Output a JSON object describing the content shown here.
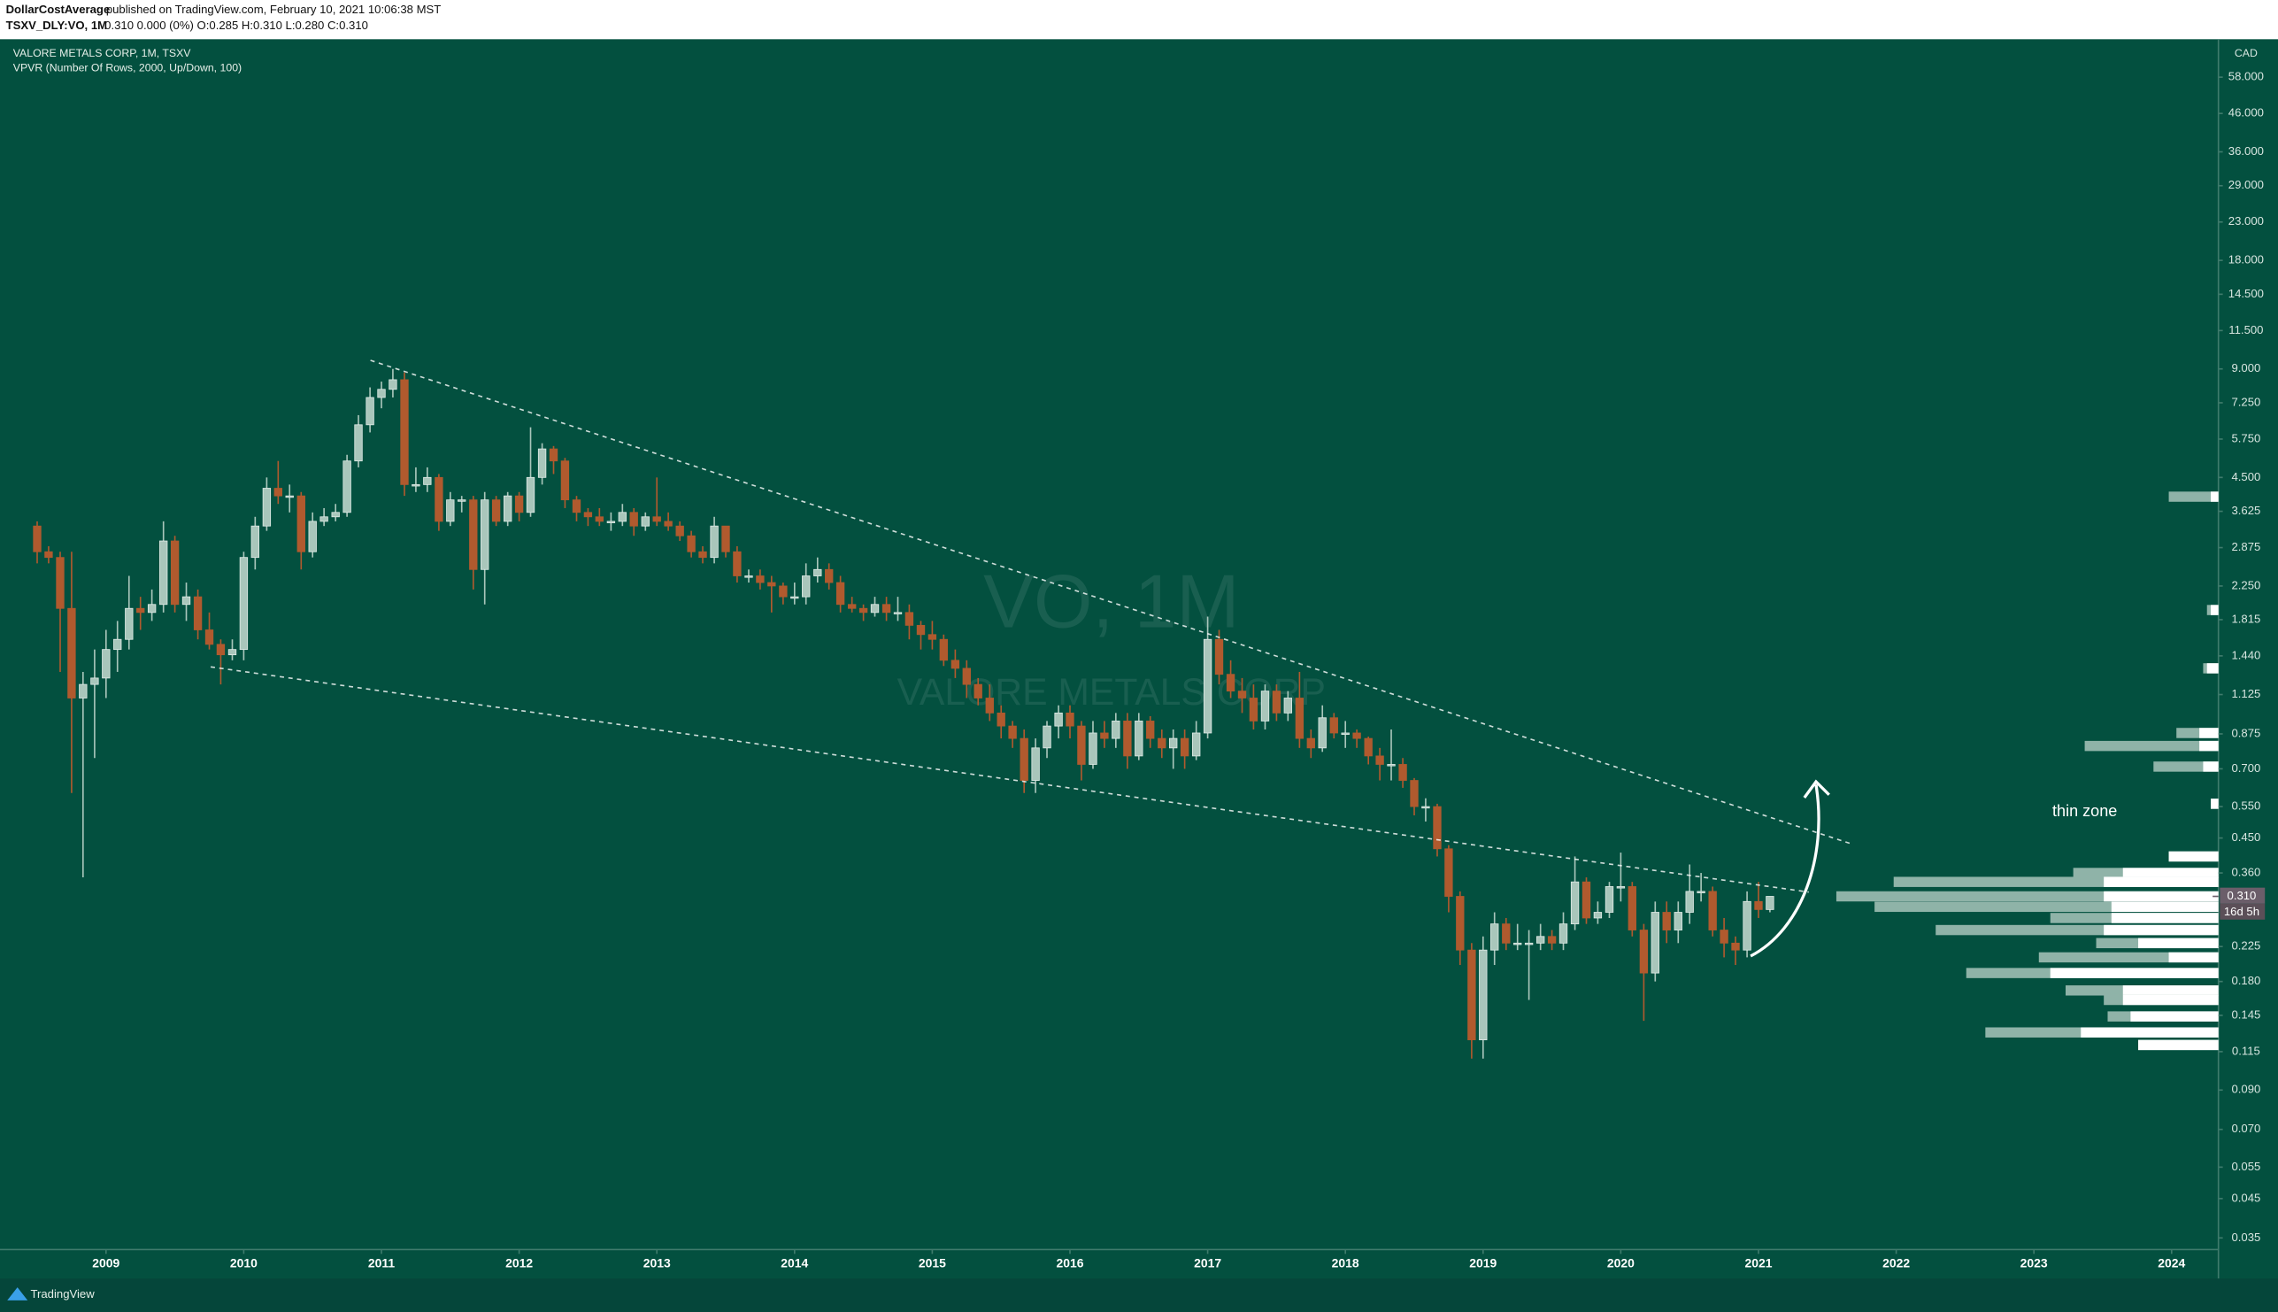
{
  "header": {
    "author": "DollarCostAverage",
    "published": "published on TradingView.com, February 10, 2021 10:06:38 MST",
    "symbol": "TSXV_DLY:VO, 1M",
    "quote": "0.310 0.000 (0%) O:0.285 H:0.310 L:0.280 C:0.310"
  },
  "chart_data": {
    "type": "candlestick",
    "title": "VALORE METALS CORP, 1M, TSXV",
    "indicator": "VPVR (Number Of Rows, 2000, Up/Down, 100)",
    "watermark": "VO, 1M",
    "watermark_subtitle": "VALORE METALS CORP",
    "currency": "CAD",
    "annotation": "thin zone",
    "up_color": "#a9c6bb",
    "down_color": "#b05a2e",
    "log_scale": true,
    "x": [
      2008.5,
      2008.583,
      2008.667,
      2008.75,
      2008.833,
      2008.917,
      2009,
      2009.083,
      2009.167,
      2009.25,
      2009.333,
      2009.417,
      2009.5,
      2009.583,
      2009.667,
      2009.75,
      2009.833,
      2009.917,
      2010,
      2010.083,
      2010.167,
      2010.25,
      2010.333,
      2010.417,
      2010.5,
      2010.583,
      2010.667,
      2010.75,
      2010.833,
      2010.917,
      2011,
      2011.083,
      2011.167,
      2011.25,
      2011.333,
      2011.417,
      2011.5,
      2011.583,
      2011.667,
      2011.75,
      2011.833,
      2011.917,
      2012,
      2012.083,
      2012.167,
      2012.25,
      2012.333,
      2012.417,
      2012.5,
      2012.583,
      2012.667,
      2012.75,
      2012.833,
      2012.917,
      2013,
      2013.083,
      2013.167,
      2013.25,
      2013.333,
      2013.417,
      2013.5,
      2013.583,
      2013.667,
      2013.75,
      2013.833,
      2013.917,
      2014,
      2014.083,
      2014.167,
      2014.25,
      2014.333,
      2014.417,
      2014.5,
      2014.583,
      2014.667,
      2014.75,
      2014.833,
      2014.917,
      2015,
      2015.083,
      2015.167,
      2015.25,
      2015.333,
      2015.417,
      2015.5,
      2015.583,
      2015.667,
      2015.75,
      2015.833,
      2015.917,
      2016,
      2016.083,
      2016.167,
      2016.25,
      2016.333,
      2016.417,
      2016.5,
      2016.583,
      2016.667,
      2016.75,
      2016.833,
      2016.917,
      2017,
      2017.083,
      2017.167,
      2017.25,
      2017.333,
      2017.417,
      2017.5,
      2017.583,
      2017.667,
      2017.75,
      2017.833,
      2017.917,
      2018,
      2018.083,
      2018.167,
      2018.25,
      2018.333,
      2018.417,
      2018.5,
      2018.583,
      2018.667,
      2018.75,
      2018.833,
      2018.917,
      2019,
      2019.083,
      2019.167,
      2019.25,
      2019.333,
      2019.417,
      2019.5,
      2019.583,
      2019.667,
      2019.75,
      2019.833,
      2019.917,
      2020,
      2020.083,
      2020.167,
      2020.25,
      2020.333,
      2020.417,
      2020.5,
      2020.583,
      2020.667,
      2020.75,
      2020.833,
      2020.917,
      2021,
      2021.083
    ],
    "open": [
      3.3,
      2.8,
      2.7,
      1.95,
      1.1,
      1.2,
      1.25,
      1.5,
      1.6,
      1.95,
      1.9,
      2.0,
      3.0,
      2.0,
      2.1,
      1.7,
      1.55,
      1.45,
      1.5,
      2.7,
      3.3,
      4.2,
      4.0,
      4.0,
      2.8,
      3.4,
      3.5,
      3.6,
      5.0,
      6.3,
      7.5,
      7.9,
      8.4,
      4.3,
      4.3,
      4.5,
      3.4,
      3.9,
      3.9,
      2.5,
      3.9,
      3.4,
      4.0,
      3.6,
      4.5,
      5.4,
      5.0,
      3.9,
      3.6,
      3.5,
      3.4,
      3.4,
      3.6,
      3.3,
      3.5,
      3.4,
      3.3,
      3.1,
      2.8,
      2.7,
      3.3,
      2.8,
      2.4,
      2.4,
      2.3,
      2.25,
      2.1,
      2.1,
      2.4,
      2.5,
      2.3,
      2.0,
      1.95,
      1.9,
      2.0,
      1.9,
      1.9,
      1.75,
      1.65,
      1.6,
      1.4,
      1.33,
      1.2,
      1.1,
      1.0,
      0.92,
      0.85,
      0.65,
      0.8,
      0.92,
      1.0,
      0.92,
      0.72,
      0.88,
      0.85,
      0.95,
      0.76,
      0.95,
      0.85,
      0.8,
      0.85,
      0.76,
      0.88,
      1.6,
      1.28,
      1.15,
      1.1,
      0.95,
      1.15,
      1.0,
      1.1,
      0.85,
      0.8,
      0.97,
      0.88,
      0.88,
      0.85,
      0.76,
      0.72,
      0.72,
      0.65,
      0.55,
      0.55,
      0.42,
      0.31,
      0.22,
      0.124,
      0.22,
      0.26,
      0.23,
      0.23,
      0.23,
      0.24,
      0.23,
      0.26,
      0.34,
      0.27,
      0.28,
      0.33,
      0.33,
      0.25,
      0.19,
      0.28,
      0.25,
      0.28,
      0.32,
      0.32,
      0.25,
      0.23,
      0.22,
      0.3,
      0.285
    ],
    "high": [
      3.4,
      2.9,
      2.8,
      2.8,
      1.3,
      1.5,
      1.7,
      1.8,
      2.4,
      2.1,
      2.2,
      3.4,
      3.1,
      2.3,
      2.2,
      1.9,
      1.6,
      1.6,
      2.8,
      3.5,
      4.5,
      5.0,
      4.3,
      4.1,
      3.6,
      3.7,
      3.8,
      5.2,
      6.7,
      8.0,
      8.3,
      9.0,
      8.8,
      4.8,
      4.8,
      4.6,
      4.1,
      4.0,
      4.0,
      4.1,
      4.0,
      4.1,
      4.1,
      6.2,
      5.6,
      5.5,
      5.1,
      4.0,
      3.7,
      3.7,
      3.6,
      3.8,
      3.7,
      3.6,
      4.5,
      3.6,
      3.4,
      3.2,
      2.9,
      3.5,
      3.3,
      2.9,
      2.5,
      2.5,
      2.4,
      2.3,
      2.3,
      2.6,
      2.7,
      2.6,
      2.4,
      2.1,
      2.0,
      2.1,
      2.1,
      2.1,
      2.0,
      1.8,
      1.8,
      1.65,
      1.5,
      1.4,
      1.25,
      1.2,
      1.05,
      0.95,
      0.9,
      0.85,
      0.95,
      1.05,
      1.05,
      0.95,
      0.95,
      0.95,
      1.0,
      1.0,
      1.0,
      0.98,
      0.9,
      0.9,
      0.9,
      0.95,
      1.85,
      1.7,
      1.4,
      1.25,
      1.2,
      1.2,
      1.2,
      1.15,
      1.3,
      0.9,
      1.05,
      1.0,
      0.95,
      0.9,
      0.86,
      0.8,
      0.9,
      0.75,
      0.66,
      0.58,
      0.56,
      0.43,
      0.32,
      0.23,
      0.24,
      0.28,
      0.27,
      0.26,
      0.25,
      0.26,
      0.25,
      0.28,
      0.4,
      0.35,
      0.3,
      0.34,
      0.41,
      0.34,
      0.26,
      0.3,
      0.3,
      0.3,
      0.38,
      0.36,
      0.33,
      0.27,
      0.24,
      0.32,
      0.34,
      0.31
    ],
    "low": [
      2.6,
      2.6,
      1.3,
      0.6,
      0.35,
      0.75,
      1.1,
      1.3,
      1.5,
      1.7,
      1.8,
      1.9,
      1.9,
      1.8,
      1.6,
      1.5,
      1.2,
      1.4,
      1.4,
      2.5,
      3.2,
      3.8,
      3.6,
      2.5,
      2.7,
      3.3,
      3.4,
      3.5,
      4.8,
      6.0,
      7.0,
      7.5,
      4.0,
      4.1,
      4.1,
      3.2,
      3.3,
      3.6,
      2.2,
      2.0,
      3.3,
      3.3,
      3.4,
      3.5,
      4.3,
      4.6,
      3.7,
      3.4,
      3.3,
      3.3,
      3.2,
      3.3,
      3.1,
      3.2,
      3.3,
      3.2,
      3.0,
      2.7,
      2.6,
      2.6,
      2.7,
      2.3,
      2.3,
      2.2,
      1.9,
      2.0,
      2.0,
      2.0,
      2.3,
      2.2,
      1.9,
      1.9,
      1.8,
      1.85,
      1.8,
      1.8,
      1.6,
      1.5,
      1.5,
      1.35,
      1.25,
      1.1,
      1.05,
      0.95,
      0.85,
      0.8,
      0.6,
      0.6,
      0.75,
      0.85,
      0.85,
      0.65,
      0.7,
      0.8,
      0.8,
      0.7,
      0.74,
      0.8,
      0.75,
      0.7,
      0.7,
      0.74,
      0.85,
      1.2,
      1.1,
      1.0,
      0.9,
      0.9,
      0.95,
      0.95,
      0.8,
      0.75,
      0.78,
      0.85,
      0.8,
      0.8,
      0.72,
      0.65,
      0.65,
      0.62,
      0.52,
      0.5,
      0.4,
      0.28,
      0.2,
      0.11,
      0.11,
      0.2,
      0.22,
      0.22,
      0.16,
      0.22,
      0.22,
      0.22,
      0.25,
      0.26,
      0.26,
      0.27,
      0.3,
      0.24,
      0.14,
      0.18,
      0.23,
      0.23,
      0.26,
      0.3,
      0.24,
      0.21,
      0.2,
      0.21,
      0.27,
      0.28
    ],
    "close": [
      2.8,
      2.7,
      1.95,
      1.1,
      1.2,
      1.25,
      1.5,
      1.6,
      1.95,
      1.9,
      2.0,
      3.0,
      2.0,
      2.1,
      1.7,
      1.55,
      1.45,
      1.5,
      2.7,
      3.3,
      4.2,
      4.0,
      4.0,
      2.8,
      3.4,
      3.5,
      3.6,
      5.0,
      6.3,
      7.5,
      7.9,
      8.4,
      4.3,
      4.3,
      4.5,
      3.4,
      3.9,
      3.9,
      2.5,
      3.9,
      3.4,
      4.0,
      3.6,
      4.5,
      5.4,
      5.0,
      3.9,
      3.6,
      3.5,
      3.4,
      3.4,
      3.6,
      3.3,
      3.5,
      3.4,
      3.3,
      3.1,
      2.8,
      2.7,
      3.3,
      2.8,
      2.4,
      2.4,
      2.3,
      2.25,
      2.1,
      2.1,
      2.4,
      2.5,
      2.3,
      2.0,
      1.95,
      1.9,
      2.0,
      1.9,
      1.9,
      1.75,
      1.65,
      1.6,
      1.4,
      1.33,
      1.2,
      1.1,
      1.0,
      0.92,
      0.85,
      0.65,
      0.8,
      0.92,
      1.0,
      0.92,
      0.72,
      0.88,
      0.85,
      0.95,
      0.76,
      0.95,
      0.85,
      0.8,
      0.85,
      0.76,
      0.88,
      1.6,
      1.28,
      1.15,
      1.1,
      0.95,
      1.15,
      1.0,
      1.1,
      0.85,
      0.8,
      0.97,
      0.88,
      0.88,
      0.85,
      0.76,
      0.72,
      0.72,
      0.65,
      0.55,
      0.55,
      0.42,
      0.31,
      0.22,
      0.124,
      0.22,
      0.26,
      0.23,
      0.23,
      0.23,
      0.24,
      0.23,
      0.26,
      0.34,
      0.27,
      0.28,
      0.33,
      0.33,
      0.25,
      0.19,
      0.28,
      0.25,
      0.28,
      0.32,
      0.32,
      0.25,
      0.23,
      0.22,
      0.3,
      0.285,
      0.31
    ],
    "xlim": [
      2008.23,
      2024.34
    ],
    "xticks": [
      2009,
      2010,
      2011,
      2012,
      2013,
      2014,
      2015,
      2016,
      2017,
      2018,
      2019,
      2020,
      2021,
      2022,
      2023,
      2024
    ],
    "ylim": [
      0.0325,
      73.9
    ],
    "yticks": [
      {
        "value": 58,
        "label": "58.000"
      },
      {
        "value": 46,
        "label": "46.000"
      },
      {
        "value": 36,
        "label": "36.000"
      },
      {
        "value": 29,
        "label": "29.000"
      },
      {
        "value": 23,
        "label": "23.000"
      },
      {
        "value": 18,
        "label": "18.000"
      },
      {
        "value": 14.5,
        "label": "14.500"
      },
      {
        "value": 11.5,
        "label": "11.500"
      },
      {
        "value": 9,
        "label": "9.000"
      },
      {
        "value": 7.25,
        "label": "7.250"
      },
      {
        "value": 5.75,
        "label": "5.750"
      },
      {
        "value": 4.5,
        "label": "4.500"
      },
      {
        "value": 3.625,
        "label": "3.625"
      },
      {
        "value": 2.875,
        "label": "2.875"
      },
      {
        "value": 2.25,
        "label": "2.250"
      },
      {
        "value": 1.815,
        "label": "1.815"
      },
      {
        "value": 1.44,
        "label": "1.440"
      },
      {
        "value": 1.125,
        "label": "1.125"
      },
      {
        "value": 0.875,
        "label": "0.875"
      },
      {
        "value": 0.7,
        "label": "0.700"
      },
      {
        "value": 0.55,
        "label": "0.550"
      },
      {
        "value": 0.45,
        "label": "0.450"
      },
      {
        "value": 0.36,
        "label": "0.360"
      },
      {
        "value": 0.225,
        "label": "0.225"
      },
      {
        "value": 0.18,
        "label": "0.180"
      },
      {
        "value": 0.145,
        "label": "0.145"
      },
      {
        "value": 0.115,
        "label": "0.115"
      },
      {
        "value": 0.09,
        "label": "0.090"
      },
      {
        "value": 0.07,
        "label": "0.070"
      },
      {
        "value": 0.055,
        "label": "0.055"
      },
      {
        "value": 0.045,
        "label": "0.045"
      },
      {
        "value": 0.035,
        "label": "0.035"
      }
    ],
    "last_price": {
      "value": 0.31,
      "label": "0.310"
    },
    "countdown": "16d 5h",
    "volume_profile": {
      "prices": [
        3.98,
        1.93,
        1.33,
        0.88,
        0.81,
        0.71,
        0.56,
        0.4,
        0.36,
        0.34,
        0.31,
        0.29,
        0.27,
        0.25,
        0.23,
        0.21,
        0.19,
        0.17,
        0.16,
        0.144,
        0.13,
        0.12
      ],
      "volumes": [
        13,
        3,
        4,
        11,
        35,
        17,
        2,
        13,
        38,
        85,
        100,
        90,
        44,
        74,
        32,
        47,
        66,
        40,
        30,
        29,
        61,
        21
      ],
      "up_volumes": [
        2,
        2,
        3,
        5,
        5,
        4,
        2,
        13,
        25,
        30,
        30,
        28,
        28,
        30,
        21,
        13,
        44,
        25,
        25,
        23,
        36,
        21
      ],
      "total_color": "#8fb3a8",
      "up_color": "#ffffff"
    }
  },
  "footer": {
    "brand": "TradingView"
  }
}
